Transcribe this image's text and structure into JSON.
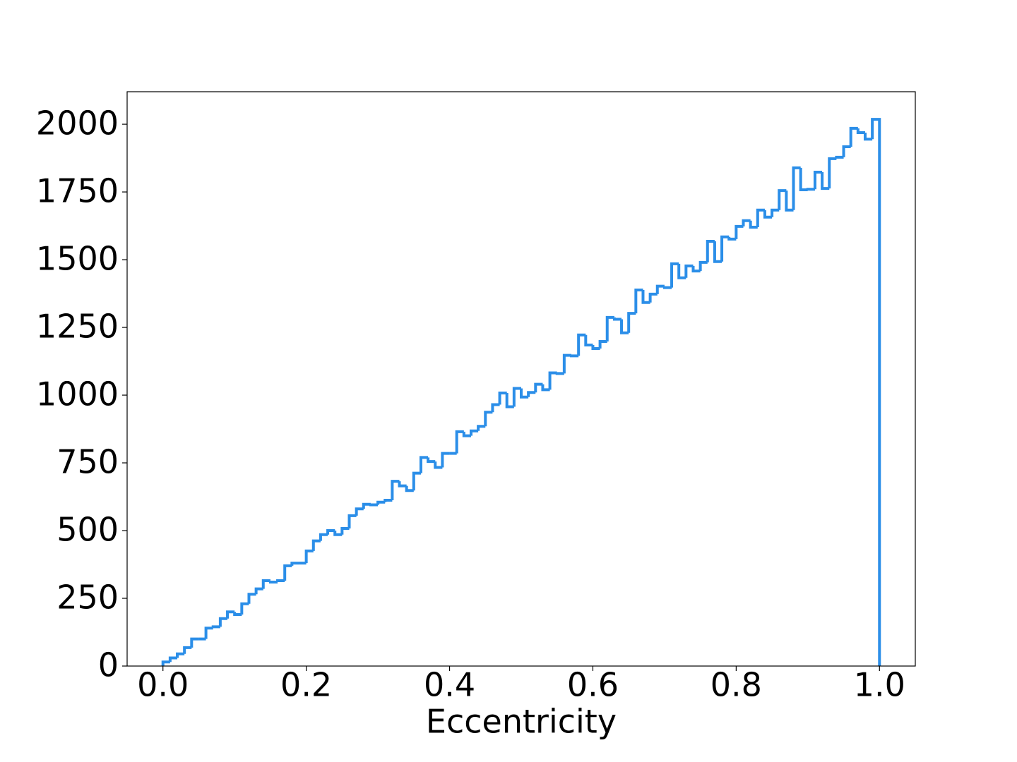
{
  "chart_data": {
    "type": "histogram",
    "histtype": "step",
    "x_label": "Eccentricity",
    "color": "#2b8ee8",
    "bins": [
      0,
      0.01,
      0.02,
      0.03,
      0.04,
      0.05,
      0.06,
      0.07,
      0.08,
      0.09,
      0.1,
      0.11,
      0.12,
      0.13,
      0.14,
      0.15,
      0.16,
      0.17,
      0.18,
      0.19,
      0.2,
      0.21,
      0.22,
      0.23,
      0.24,
      0.25,
      0.26,
      0.27,
      0.28,
      0.29,
      0.3,
      0.31,
      0.32,
      0.33,
      0.34,
      0.35,
      0.36,
      0.37,
      0.38,
      0.39,
      0.4,
      0.41,
      0.42,
      0.43,
      0.44,
      0.45,
      0.46,
      0.47,
      0.48,
      0.49,
      0.5,
      0.51,
      0.52,
      0.53,
      0.54,
      0.55,
      0.56,
      0.57,
      0.58,
      0.59,
      0.6,
      0.61,
      0.62,
      0.63,
      0.64,
      0.65,
      0.66,
      0.67,
      0.68,
      0.69,
      0.7,
      0.71,
      0.72,
      0.73,
      0.74,
      0.75,
      0.76,
      0.77,
      0.78,
      0.79,
      0.8,
      0.81,
      0.82,
      0.83,
      0.84,
      0.85,
      0.86,
      0.87,
      0.88,
      0.89,
      0.9,
      0.91,
      0.92,
      0.93,
      0.94,
      0.95,
      0.96,
      0.97,
      0.98,
      0.99,
      1
    ],
    "counts": [
      15,
      30,
      45,
      68,
      100,
      100,
      140,
      145,
      175,
      200,
      190,
      230,
      265,
      285,
      315,
      310,
      315,
      370,
      380,
      380,
      425,
      462,
      485,
      500,
      485,
      508,
      555,
      580,
      597,
      595,
      605,
      612,
      682,
      665,
      648,
      712,
      770,
      755,
      733,
      785,
      785,
      865,
      850,
      868,
      885,
      937,
      965,
      1008,
      957,
      1025,
      993,
      1010,
      1040,
      1020,
      1082,
      1080,
      1147,
      1145,
      1222,
      1185,
      1172,
      1198,
      1287,
      1280,
      1230,
      1302,
      1388,
      1342,
      1373,
      1402,
      1397,
      1485,
      1433,
      1477,
      1458,
      1490,
      1568,
      1493,
      1584,
      1576,
      1623,
      1644,
      1620,
      1683,
      1657,
      1683,
      1755,
      1683,
      1839,
      1758,
      1760,
      1823,
      1763,
      1873,
      1878,
      1917,
      1985,
      1969,
      1945,
      2018
    ],
    "xlim": [
      -0.05,
      1.05
    ],
    "ylim": [
      0,
      2120
    ],
    "xticks": [
      {
        "value": 0,
        "label": "0.0"
      },
      0.2,
      0.4,
      0.6,
      0.8,
      {
        "value": 1,
        "label": "1.0"
      }
    ],
    "yticks": [
      0,
      250,
      500,
      750,
      1000,
      1250,
      1500,
      1750,
      2000
    ]
  }
}
